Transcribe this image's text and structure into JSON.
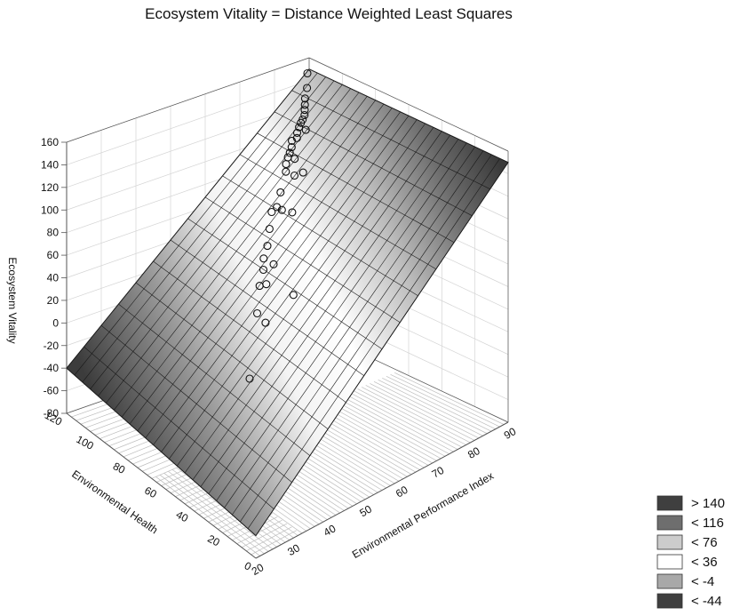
{
  "chart_data": {
    "type": "surface3d",
    "title": "Ecosystem Vitality = Distance Weighted Least Squares",
    "xlabel": "Environmental Performance Index",
    "ylabel": "Environmental Health",
    "zlabel": "Ecosystem Vitality",
    "x_ticks": [
      "20",
      "30",
      "40",
      "50",
      "60",
      "70",
      "80",
      "90"
    ],
    "y_ticks": [
      "0",
      "20",
      "40",
      "60",
      "80",
      "100",
      "120"
    ],
    "z_ticks": [
      "-80",
      "-60",
      "-40",
      "-20",
      "0",
      "20",
      "40",
      "60",
      "80",
      "100",
      "120",
      "140",
      "160"
    ],
    "xlim": [
      20,
      90
    ],
    "ylim": [
      0,
      120
    ],
    "zlim": [
      -80,
      160
    ],
    "surface_corners": {
      "x20_y0": -60,
      "x20_y120": -40,
      "x90_y0": 150,
      "x90_y120": 150
    },
    "grid": true,
    "legend": {
      "position": "bottom-right",
      "entries": [
        {
          "label": "> 140",
          "color": "#3f3f3f"
        },
        {
          "label": "< 116",
          "color": "#6e6e6e"
        },
        {
          "label": "< 76",
          "color": "#cccccc"
        },
        {
          "label": "< 36",
          "color": "#ffffff"
        },
        {
          "label": "< -4",
          "color": "#a8a8a8"
        },
        {
          "label": "< -44",
          "color": "#3f3f3f"
        }
      ]
    },
    "points": [
      {
        "x": 89,
        "y": 119,
        "z": 148
      },
      {
        "x": 87,
        "y": 115,
        "z": 140
      },
      {
        "x": 85,
        "y": 112,
        "z": 135
      },
      {
        "x": 84,
        "y": 110,
        "z": 132
      },
      {
        "x": 83,
        "y": 108,
        "z": 130
      },
      {
        "x": 82,
        "y": 106,
        "z": 128
      },
      {
        "x": 81,
        "y": 105,
        "z": 126
      },
      {
        "x": 80,
        "y": 104,
        "z": 125
      },
      {
        "x": 79,
        "y": 103,
        "z": 123
      },
      {
        "x": 80,
        "y": 101,
        "z": 121
      },
      {
        "x": 78,
        "y": 102,
        "z": 120
      },
      {
        "x": 77,
        "y": 100,
        "z": 118
      },
      {
        "x": 76,
        "y": 101,
        "z": 116
      },
      {
        "x": 75,
        "y": 99,
        "z": 113
      },
      {
        "x": 74,
        "y": 98,
        "z": 110
      },
      {
        "x": 73,
        "y": 97,
        "z": 108
      },
      {
        "x": 74,
        "y": 95,
        "z": 107
      },
      {
        "x": 72,
        "y": 96,
        "z": 104
      },
      {
        "x": 71,
        "y": 94,
        "z": 100
      },
      {
        "x": 75,
        "y": 92,
        "z": 96
      },
      {
        "x": 73,
        "y": 93,
        "z": 95
      },
      {
        "x": 69,
        "y": 93,
        "z": 85
      },
      {
        "x": 67,
        "y": 91,
        "z": 76
      },
      {
        "x": 68,
        "y": 90,
        "z": 73
      },
      {
        "x": 66,
        "y": 92,
        "z": 72
      },
      {
        "x": 70,
        "y": 88,
        "z": 70
      },
      {
        "x": 64,
        "y": 89,
        "z": 62
      },
      {
        "x": 62,
        "y": 86,
        "z": 52
      },
      {
        "x": 60,
        "y": 84,
        "z": 45
      },
      {
        "x": 61,
        "y": 80,
        "z": 42
      },
      {
        "x": 59,
        "y": 82,
        "z": 38
      },
      {
        "x": 58,
        "y": 78,
        "z": 30
      },
      {
        "x": 57,
        "y": 80,
        "z": 28
      },
      {
        "x": 62,
        "y": 70,
        "z": 22
      },
      {
        "x": 54,
        "y": 75,
        "z": 12
      },
      {
        "x": 55,
        "y": 72,
        "z": 5
      },
      {
        "x": 45,
        "y": 60,
        "z": -20
      }
    ]
  }
}
